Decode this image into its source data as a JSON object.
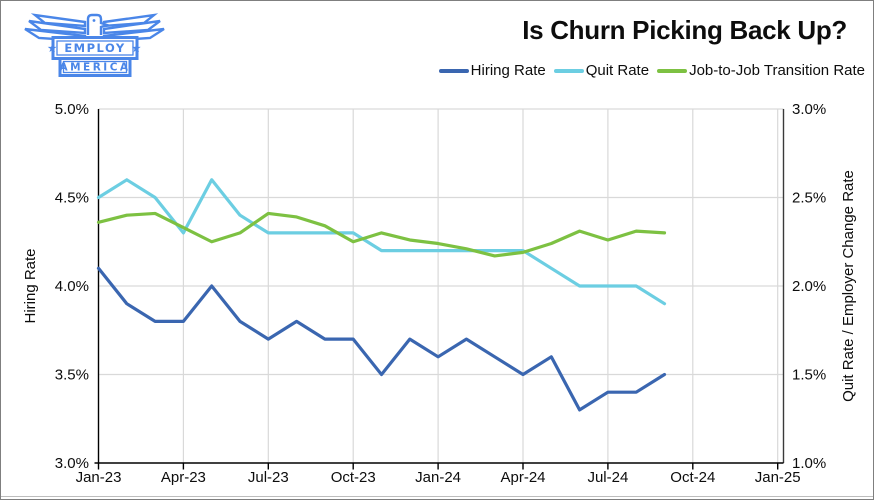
{
  "logo": {
    "banner1": "★ EMPLOY ★",
    "banner2": "AMERICA",
    "color": "#4a86e8"
  },
  "header": {
    "title": "Is Churn Picking Back Up?"
  },
  "chart_data": {
    "type": "line",
    "title": "Is Churn Picking Back Up?",
    "grid": true,
    "legend_position": "top-right",
    "x": [
      "Jan-23",
      "Feb-23",
      "Mar-23",
      "Apr-23",
      "May-23",
      "Jun-23",
      "Jul-23",
      "Aug-23",
      "Sep-23",
      "Oct-23",
      "Nov-23",
      "Dec-23",
      "Jan-24",
      "Feb-24",
      "Mar-24",
      "Apr-24",
      "May-24",
      "Jun-24",
      "Jul-24",
      "Aug-24",
      "Sep-24"
    ],
    "x_tick_labels": [
      "Jan-23",
      "Apr-23",
      "Jul-23",
      "Oct-23",
      "Jan-24",
      "Apr-24",
      "Jul-24",
      "Oct-24",
      "Jan-25"
    ],
    "x_axis_range": [
      "Jan-23",
      "Jan-25"
    ],
    "left_axis": {
      "title": "Hiring Rate",
      "min": 3.0,
      "max": 5.0,
      "tick_step": 0.5,
      "tick_labels": [
        "3.0%",
        "3.5%",
        "4.0%",
        "4.5%",
        "5.0%"
      ]
    },
    "right_axis": {
      "title": "Quit Rate / Employer Change Rate",
      "min": 1.0,
      "max": 3.0,
      "tick_step": 0.5,
      "tick_labels": [
        "1.0%",
        "1.5%",
        "2.0%",
        "2.5%",
        "3.0%"
      ]
    },
    "series": [
      {
        "name": "Hiring Rate",
        "axis": "left",
        "color": "#3a66b0",
        "values": [
          4.1,
          3.9,
          3.8,
          3.8,
          4.0,
          3.8,
          3.7,
          3.8,
          3.7,
          3.7,
          3.5,
          3.7,
          3.6,
          3.7,
          3.6,
          3.5,
          3.6,
          3.3,
          3.4,
          3.4,
          3.5
        ]
      },
      {
        "name": "Quit Rate",
        "axis": "right",
        "color": "#6cceE2",
        "values": [
          2.5,
          2.6,
          2.5,
          2.3,
          2.6,
          2.4,
          2.3,
          2.3,
          2.3,
          2.3,
          2.2,
          2.2,
          2.2,
          2.2,
          2.2,
          2.2,
          2.1,
          2.0,
          2.0,
          2.0,
          1.9
        ]
      },
      {
        "name": "Job-to-Job Transition Rate",
        "axis": "right",
        "color": "#7dc142",
        "values": [
          2.36,
          2.4,
          2.41,
          2.33,
          2.25,
          2.3,
          2.41,
          2.39,
          2.34,
          2.25,
          2.3,
          2.26,
          2.24,
          2.21,
          2.17,
          2.19,
          2.24,
          2.31,
          2.26,
          2.31,
          2.3
        ]
      }
    ]
  }
}
